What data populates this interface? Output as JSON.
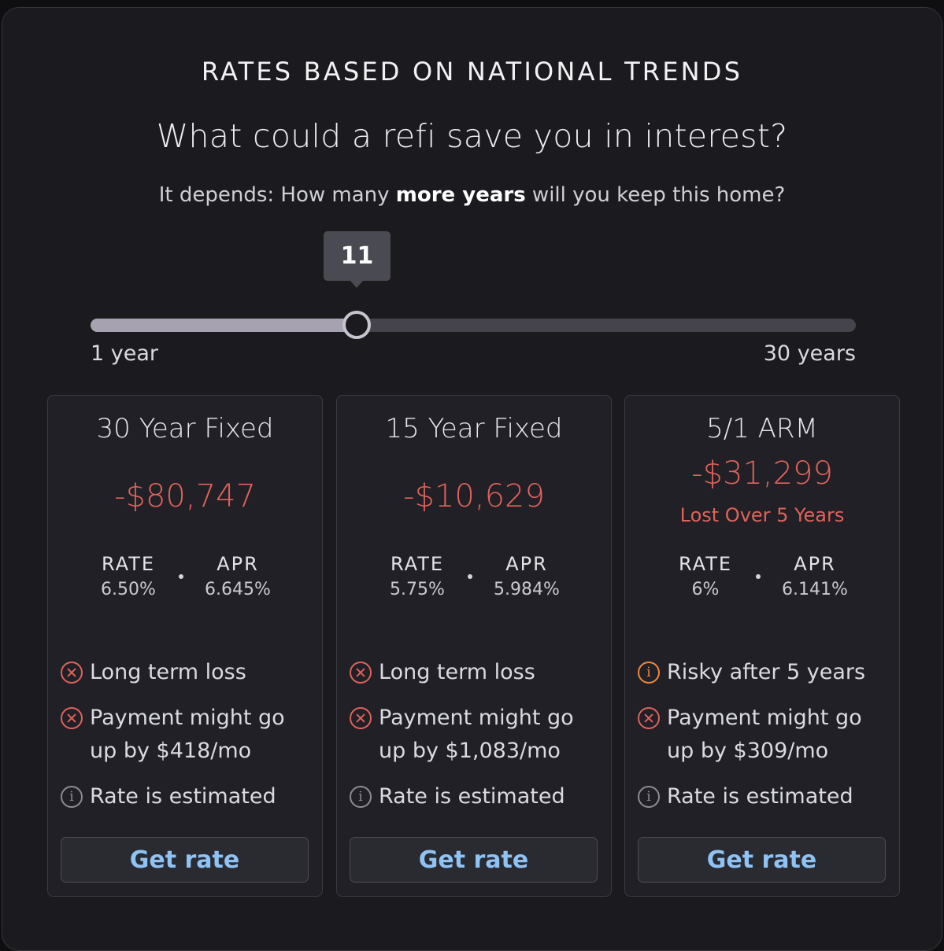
{
  "header": {
    "eyebrow": "RATES BASED ON NATIONAL TRENDS",
    "headline": "What could a refi save you in interest?",
    "question_pre": "It depends: How many ",
    "question_bold": "more years",
    "question_post": " will you keep this home?"
  },
  "slider": {
    "value": 11,
    "value_label": "11",
    "min": 1,
    "max": 30,
    "min_label": "1 year",
    "max_label": "30 years"
  },
  "cards": [
    {
      "title": "30 Year Fixed",
      "amount": "-$80,747",
      "subtext": "",
      "rate_label": "RATE",
      "rate": "6.50%",
      "apr_label": "APR",
      "apr": "6.645%",
      "features": [
        {
          "icon": "x-circle-icon",
          "line1": "Long term loss",
          "line2": ""
        },
        {
          "icon": "x-circle-icon",
          "line1": "Payment might go",
          "line2": "up by $418/mo"
        },
        {
          "icon": "info-circle-icon",
          "line1": "Rate is estimated",
          "line2": ""
        }
      ],
      "button": "Get rate"
    },
    {
      "title": "15 Year Fixed",
      "amount": "-$10,629",
      "subtext": "",
      "rate_label": "RATE",
      "rate": "5.75%",
      "apr_label": "APR",
      "apr": "5.984%",
      "features": [
        {
          "icon": "x-circle-icon",
          "line1": "Long term loss",
          "line2": ""
        },
        {
          "icon": "x-circle-icon",
          "line1": "Payment might go",
          "line2": "up by $1,083/mo"
        },
        {
          "icon": "info-circle-icon",
          "line1": "Rate is estimated",
          "line2": ""
        }
      ],
      "button": "Get rate"
    },
    {
      "title": "5/1 ARM",
      "amount": "-$31,299",
      "subtext": "Lost Over 5 Years",
      "rate_label": "RATE",
      "rate": "6%",
      "apr_label": "APR",
      "apr": "6.141%",
      "features": [
        {
          "icon": "warning-circle-icon",
          "line1": "Risky after 5 years",
          "line2": ""
        },
        {
          "icon": "x-circle-icon",
          "line1": "Payment might go",
          "line2": "up by $309/mo"
        },
        {
          "icon": "info-circle-icon",
          "line1": "Rate is estimated",
          "line2": ""
        }
      ],
      "button": "Get rate"
    }
  ],
  "colors": {
    "loss_red": "#e0625b",
    "warning_orange": "#f0883e",
    "button_text_blue": "#8fc3f3",
    "panel_bg": "#1b1b1f",
    "card_bg": "#202026"
  }
}
